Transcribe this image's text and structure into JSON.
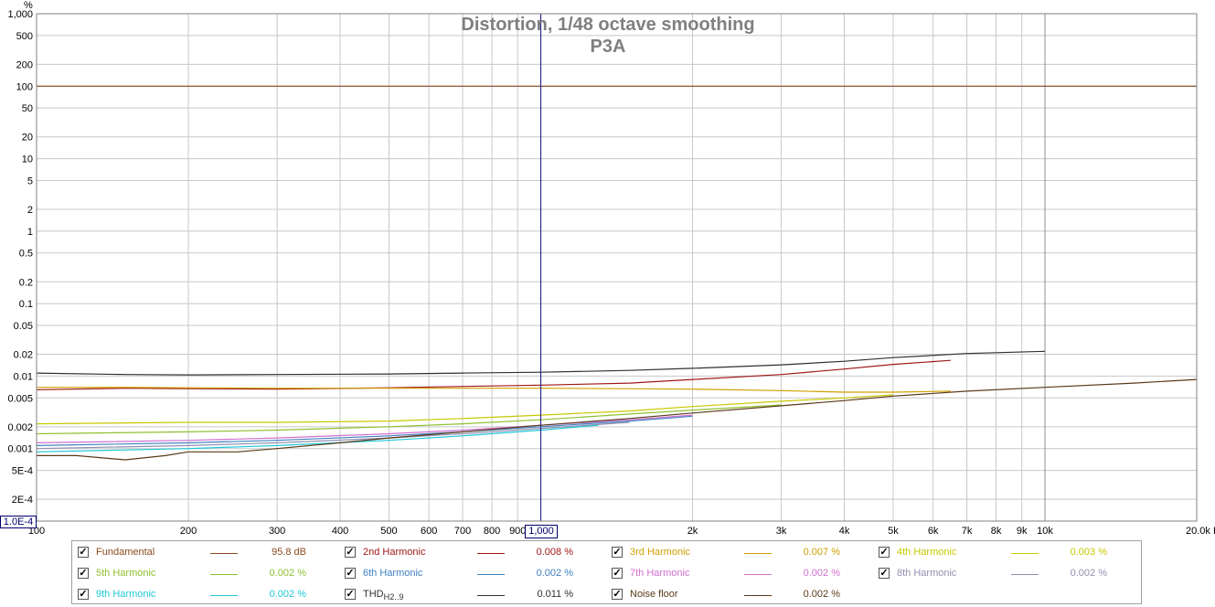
{
  "chart_data": {
    "type": "line",
    "title": "Distortion, 1/48 octave smoothing",
    "subtitle": "P3A",
    "xlabel": "",
    "ylabel": "%",
    "x_scale": "log",
    "y_scale": "log",
    "xlim": [
      100,
      20000
    ],
    "ylim": [
      0.0001,
      1000
    ],
    "x_ticks": [
      100,
      200,
      300,
      400,
      500,
      600,
      700,
      800,
      900,
      1000,
      2000,
      3000,
      4000,
      5000,
      6000,
      7000,
      8000,
      9000,
      10000,
      20000
    ],
    "x_tick_labels": [
      "100",
      "200",
      "300",
      "400",
      "500",
      "600",
      "700",
      "800",
      "900",
      "1,000",
      "2k",
      "3k",
      "4k",
      "5k",
      "6k",
      "7k",
      "8k",
      "9k",
      "10k",
      "20.0k Hz"
    ],
    "y_ticks": [
      0.0002,
      0.0005,
      0.001,
      0.002,
      0.005,
      0.01,
      0.02,
      0.05,
      0.1,
      0.2,
      0.5,
      1,
      2,
      5,
      10,
      20,
      50,
      100,
      200,
      500,
      1000
    ],
    "y_tick_labels": [
      "2E-4",
      "5E-4",
      "0.001",
      "0.002",
      "0.005",
      "0.01",
      "0.02",
      "0.05",
      "0.1",
      "0.2",
      "0.5",
      "1",
      "2",
      "5",
      "10",
      "20",
      "50",
      "100",
      "200",
      "500",
      "1,000"
    ],
    "grid": true,
    "legend_position": "bottom",
    "cursor_x_label": "1,000",
    "cursor_y_label": "1.0E-4",
    "series": [
      {
        "name": "Fundamental",
        "color": "#8b4a1e",
        "value_label": "95.8 dB",
        "x": [
          100,
          1000,
          10000,
          20000
        ],
        "values": [
          100,
          100,
          100,
          100
        ]
      },
      {
        "name": "2nd Harmonic",
        "color": "#a01818",
        "value_label": "0.008 %",
        "x": [
          100,
          150,
          200,
          300,
          500,
          700,
          1000,
          1500,
          2000,
          3000,
          4000,
          5000,
          6500
        ],
        "values": [
          0.0065,
          0.0068,
          0.0067,
          0.0066,
          0.0069,
          0.0072,
          0.0075,
          0.008,
          0.009,
          0.0105,
          0.0125,
          0.0145,
          0.0165
        ]
      },
      {
        "name": "3rd Harmonic",
        "color": "#d0a000",
        "value_label": "0.007 %",
        "x": [
          100,
          150,
          200,
          300,
          500,
          700,
          1000,
          1500,
          2000,
          3000,
          4000,
          5000,
          6500
        ],
        "values": [
          0.007,
          0.007,
          0.0069,
          0.0068,
          0.0068,
          0.0068,
          0.0068,
          0.0067,
          0.0066,
          0.0063,
          0.006,
          0.006,
          0.0062
        ]
      },
      {
        "name": "4th Harmonic",
        "color": "#c8c800",
        "value_label": "0.003 %",
        "x": [
          100,
          200,
          300,
          500,
          700,
          1000,
          1500,
          2000,
          3000,
          4000,
          5000
        ],
        "values": [
          0.0022,
          0.0023,
          0.0023,
          0.0024,
          0.0026,
          0.0029,
          0.0033,
          0.0038,
          0.0045,
          0.005,
          0.0055
        ]
      },
      {
        "name": "5th Harmonic",
        "color": "#90c030",
        "value_label": "0.002 %",
        "x": [
          100,
          200,
          300,
          500,
          700,
          1000,
          1500,
          2000,
          3000
        ],
        "values": [
          0.0016,
          0.0017,
          0.0018,
          0.002,
          0.0022,
          0.0025,
          0.003,
          0.0034,
          0.004
        ]
      },
      {
        "name": "6th Harmonic",
        "color": "#4080c0",
        "value_label": "0.002 %",
        "x": [
          100,
          200,
          300,
          500,
          700,
          1000,
          1500,
          2000
        ],
        "values": [
          0.0011,
          0.0012,
          0.0013,
          0.0015,
          0.0017,
          0.002,
          0.0024,
          0.0028
        ]
      },
      {
        "name": "7th Harmonic",
        "color": "#d070d0",
        "value_label": "0.002 %",
        "x": [
          100,
          200,
          300,
          500,
          700,
          1000,
          1500,
          2000
        ],
        "values": [
          0.0012,
          0.0013,
          0.0014,
          0.0016,
          0.0018,
          0.0021,
          0.0025,
          0.0029
        ]
      },
      {
        "name": "8th Harmonic",
        "color": "#9090b0",
        "value_label": "0.002 %",
        "x": [
          100,
          200,
          300,
          500,
          700,
          1000,
          1500
        ],
        "values": [
          0.001,
          0.0011,
          0.0012,
          0.0014,
          0.0016,
          0.0019,
          0.0023
        ]
      },
      {
        "name": "9th Harmonic",
        "color": "#20c8d8",
        "value_label": "0.002 %",
        "x": [
          100,
          200,
          300,
          500,
          700,
          1000,
          1300
        ],
        "values": [
          0.0009,
          0.001,
          0.0011,
          0.0013,
          0.0015,
          0.0018,
          0.0021
        ]
      },
      {
        "name": "THD",
        "name_sub": "H2..9",
        "color": "#303030",
        "value_label": "0.011 %",
        "x": [
          100,
          150,
          200,
          300,
          500,
          700,
          1000,
          1500,
          2000,
          3000,
          4000,
          5000,
          7000,
          10000
        ],
        "values": [
          0.011,
          0.0105,
          0.0104,
          0.0105,
          0.0107,
          0.011,
          0.0113,
          0.012,
          0.0128,
          0.0143,
          0.016,
          0.018,
          0.0205,
          0.022
        ]
      },
      {
        "name": "Noise floor",
        "color": "#5a3a1a",
        "value_label": "0.002 %",
        "x": [
          100,
          120,
          150,
          180,
          200,
          250,
          300,
          400,
          500,
          700,
          1000,
          1500,
          2000,
          3000,
          4000,
          5000,
          7000,
          10000,
          15000,
          20000
        ],
        "values": [
          0.0008,
          0.0008,
          0.0007,
          0.0008,
          0.0009,
          0.0009,
          0.001,
          0.0012,
          0.0014,
          0.0017,
          0.0021,
          0.0026,
          0.0031,
          0.0039,
          0.0046,
          0.0053,
          0.0062,
          0.007,
          0.008,
          0.009
        ]
      }
    ]
  }
}
